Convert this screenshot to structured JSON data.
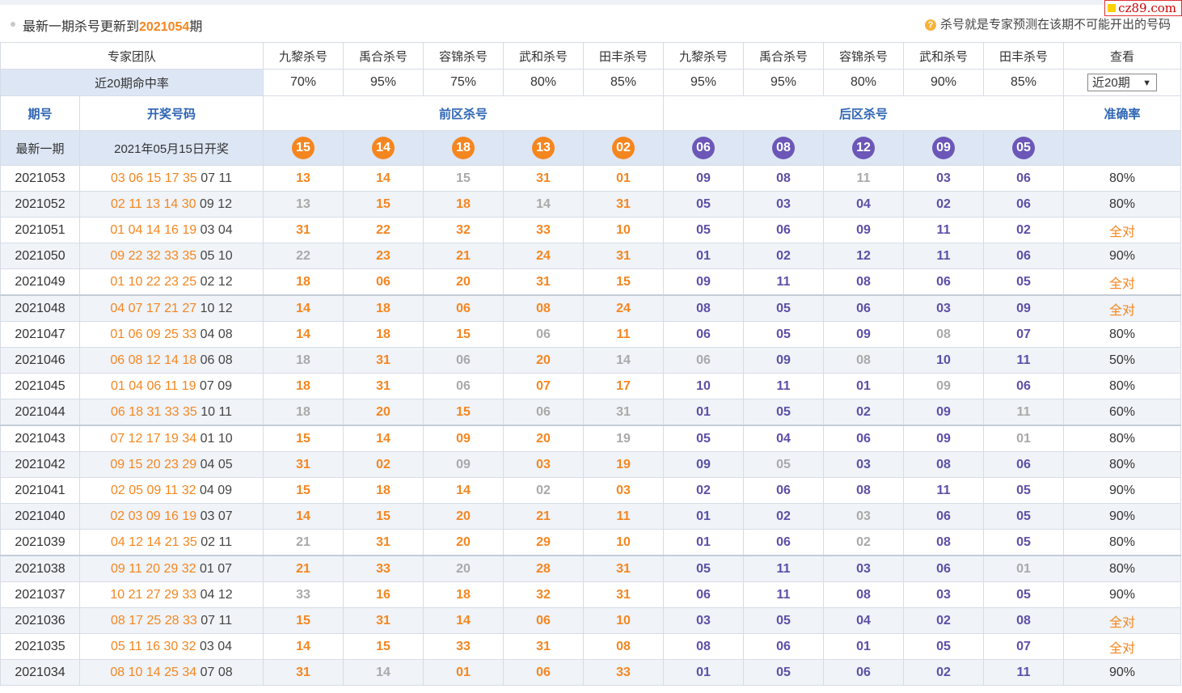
{
  "header": {
    "prefix": "最新一期杀号更新到",
    "period": "2021054",
    "suffix": "期",
    "tip": "杀号就是专家预测在该期不可能开出的号码",
    "logo": "cz89.com"
  },
  "columns": {
    "team_label": "专家团队",
    "experts": [
      "九黎杀号",
      "禹合杀号",
      "容锦杀号",
      "武和杀号",
      "田丰杀号",
      "九黎杀号",
      "禹合杀号",
      "容锦杀号",
      "武和杀号",
      "田丰杀号"
    ],
    "view_label": "查看"
  },
  "rates": {
    "label": "近20期命中率",
    "values": [
      "70%",
      "95%",
      "75%",
      "80%",
      "85%",
      "95%",
      "95%",
      "80%",
      "90%",
      "85%"
    ],
    "select_value": "近20期"
  },
  "sections": {
    "period": "期号",
    "draw": "开奖号码",
    "front": "前区杀号",
    "back": "后区杀号",
    "accuracy": "准确率"
  },
  "latest": {
    "label": "最新一期",
    "date": "2021年05月15日开奖",
    "front": [
      "15",
      "14",
      "18",
      "13",
      "02"
    ],
    "back": [
      "06",
      "08",
      "12",
      "09",
      "05"
    ]
  },
  "rows": [
    {
      "period": "2021053",
      "front": [
        "03",
        "06",
        "15",
        "17",
        "35"
      ],
      "back": [
        "07",
        "11"
      ],
      "kills": [
        "13",
        "14",
        "15",
        "31",
        "01",
        "09",
        "08",
        "11",
        "03",
        "06"
      ],
      "hits": [
        1,
        1,
        0,
        1,
        1,
        1,
        1,
        0,
        1,
        1
      ],
      "acc": "80%"
    },
    {
      "period": "2021052",
      "front": [
        "02",
        "11",
        "13",
        "14",
        "30"
      ],
      "back": [
        "09",
        "12"
      ],
      "kills": [
        "13",
        "15",
        "18",
        "14",
        "31",
        "05",
        "03",
        "04",
        "02",
        "06"
      ],
      "hits": [
        0,
        1,
        1,
        0,
        1,
        1,
        1,
        1,
        1,
        1
      ],
      "acc": "80%"
    },
    {
      "period": "2021051",
      "front": [
        "01",
        "04",
        "14",
        "16",
        "19"
      ],
      "back": [
        "03",
        "04"
      ],
      "kills": [
        "31",
        "22",
        "32",
        "33",
        "10",
        "05",
        "06",
        "09",
        "11",
        "02"
      ],
      "hits": [
        1,
        1,
        1,
        1,
        1,
        1,
        1,
        1,
        1,
        1
      ],
      "acc": "全对"
    },
    {
      "period": "2021050",
      "front": [
        "09",
        "22",
        "32",
        "33",
        "35"
      ],
      "back": [
        "05",
        "10"
      ],
      "kills": [
        "22",
        "23",
        "21",
        "24",
        "31",
        "01",
        "02",
        "12",
        "11",
        "06"
      ],
      "hits": [
        0,
        1,
        1,
        1,
        1,
        1,
        1,
        1,
        1,
        1
      ],
      "acc": "90%"
    },
    {
      "period": "2021049",
      "front": [
        "01",
        "10",
        "22",
        "23",
        "25"
      ],
      "back": [
        "02",
        "12"
      ],
      "kills": [
        "18",
        "06",
        "20",
        "31",
        "15",
        "09",
        "11",
        "08",
        "06",
        "05"
      ],
      "hits": [
        1,
        1,
        1,
        1,
        1,
        1,
        1,
        1,
        1,
        1
      ],
      "acc": "全对"
    },
    {
      "period": "2021048",
      "front": [
        "04",
        "07",
        "17",
        "21",
        "27"
      ],
      "back": [
        "10",
        "12"
      ],
      "kills": [
        "14",
        "18",
        "06",
        "08",
        "24",
        "08",
        "05",
        "06",
        "03",
        "09"
      ],
      "hits": [
        1,
        1,
        1,
        1,
        1,
        1,
        1,
        1,
        1,
        1
      ],
      "acc": "全对"
    },
    {
      "period": "2021047",
      "front": [
        "01",
        "06",
        "09",
        "25",
        "33"
      ],
      "back": [
        "04",
        "08"
      ],
      "kills": [
        "14",
        "18",
        "15",
        "06",
        "11",
        "06",
        "05",
        "09",
        "08",
        "07"
      ],
      "hits": [
        1,
        1,
        1,
        0,
        1,
        1,
        1,
        1,
        0,
        1
      ],
      "acc": "80%"
    },
    {
      "period": "2021046",
      "front": [
        "06",
        "08",
        "12",
        "14",
        "18"
      ],
      "back": [
        "06",
        "08"
      ],
      "kills": [
        "18",
        "31",
        "06",
        "20",
        "14",
        "06",
        "09",
        "08",
        "10",
        "11"
      ],
      "hits": [
        0,
        1,
        0,
        1,
        0,
        0,
        1,
        0,
        1,
        1
      ],
      "acc": "50%"
    },
    {
      "period": "2021045",
      "front": [
        "01",
        "04",
        "06",
        "11",
        "19"
      ],
      "back": [
        "07",
        "09"
      ],
      "kills": [
        "18",
        "31",
        "06",
        "07",
        "17",
        "10",
        "11",
        "01",
        "09",
        "06"
      ],
      "hits": [
        1,
        1,
        0,
        1,
        1,
        1,
        1,
        1,
        0,
        1
      ],
      "acc": "80%"
    },
    {
      "period": "2021044",
      "front": [
        "06",
        "18",
        "31",
        "33",
        "35"
      ],
      "back": [
        "10",
        "11"
      ],
      "kills": [
        "18",
        "20",
        "15",
        "06",
        "31",
        "01",
        "05",
        "02",
        "09",
        "11"
      ],
      "hits": [
        0,
        1,
        1,
        0,
        0,
        1,
        1,
        1,
        1,
        0
      ],
      "acc": "60%"
    },
    {
      "period": "2021043",
      "front": [
        "07",
        "12",
        "17",
        "19",
        "34"
      ],
      "back": [
        "01",
        "10"
      ],
      "kills": [
        "15",
        "14",
        "09",
        "20",
        "19",
        "05",
        "04",
        "06",
        "09",
        "01"
      ],
      "hits": [
        1,
        1,
        1,
        1,
        0,
        1,
        1,
        1,
        1,
        0
      ],
      "acc": "80%"
    },
    {
      "period": "2021042",
      "front": [
        "09",
        "15",
        "20",
        "23",
        "29"
      ],
      "back": [
        "04",
        "05"
      ],
      "kills": [
        "31",
        "02",
        "09",
        "03",
        "19",
        "09",
        "05",
        "03",
        "08",
        "06"
      ],
      "hits": [
        1,
        1,
        0,
        1,
        1,
        1,
        0,
        1,
        1,
        1
      ],
      "acc": "80%"
    },
    {
      "period": "2021041",
      "front": [
        "02",
        "05",
        "09",
        "11",
        "32"
      ],
      "back": [
        "04",
        "09"
      ],
      "kills": [
        "15",
        "18",
        "14",
        "02",
        "03",
        "02",
        "06",
        "08",
        "11",
        "05"
      ],
      "hits": [
        1,
        1,
        1,
        0,
        1,
        1,
        1,
        1,
        1,
        1
      ],
      "acc": "90%"
    },
    {
      "period": "2021040",
      "front": [
        "02",
        "03",
        "09",
        "16",
        "19"
      ],
      "back": [
        "03",
        "07"
      ],
      "kills": [
        "14",
        "15",
        "20",
        "21",
        "11",
        "01",
        "02",
        "03",
        "06",
        "05"
      ],
      "hits": [
        1,
        1,
        1,
        1,
        1,
        1,
        1,
        0,
        1,
        1
      ],
      "acc": "90%"
    },
    {
      "period": "2021039",
      "front": [
        "04",
        "12",
        "14",
        "21",
        "35"
      ],
      "back": [
        "02",
        "11"
      ],
      "kills": [
        "21",
        "31",
        "20",
        "29",
        "10",
        "01",
        "06",
        "02",
        "08",
        "05"
      ],
      "hits": [
        0,
        1,
        1,
        1,
        1,
        1,
        1,
        0,
        1,
        1
      ],
      "acc": "80%"
    },
    {
      "period": "2021038",
      "front": [
        "09",
        "11",
        "20",
        "29",
        "32"
      ],
      "back": [
        "01",
        "07"
      ],
      "kills": [
        "21",
        "33",
        "20",
        "28",
        "31",
        "05",
        "11",
        "03",
        "06",
        "01"
      ],
      "hits": [
        1,
        1,
        0,
        1,
        1,
        1,
        1,
        1,
        1,
        0
      ],
      "acc": "80%"
    },
    {
      "period": "2021037",
      "front": [
        "10",
        "21",
        "27",
        "29",
        "33"
      ],
      "back": [
        "04",
        "12"
      ],
      "kills": [
        "33",
        "16",
        "18",
        "32",
        "31",
        "06",
        "11",
        "08",
        "03",
        "05"
      ],
      "hits": [
        0,
        1,
        1,
        1,
        1,
        1,
        1,
        1,
        1,
        1
      ],
      "acc": "90%"
    },
    {
      "period": "2021036",
      "front": [
        "08",
        "17",
        "25",
        "28",
        "33"
      ],
      "back": [
        "07",
        "11"
      ],
      "kills": [
        "15",
        "31",
        "14",
        "06",
        "10",
        "03",
        "05",
        "04",
        "02",
        "08"
      ],
      "hits": [
        1,
        1,
        1,
        1,
        1,
        1,
        1,
        1,
        1,
        1
      ],
      "acc": "全对"
    },
    {
      "period": "2021035",
      "front": [
        "05",
        "11",
        "16",
        "30",
        "32"
      ],
      "back": [
        "03",
        "04"
      ],
      "kills": [
        "14",
        "15",
        "33",
        "31",
        "08",
        "08",
        "06",
        "01",
        "05",
        "07"
      ],
      "hits": [
        1,
        1,
        1,
        1,
        1,
        1,
        1,
        1,
        1,
        1
      ],
      "acc": "全对"
    },
    {
      "period": "2021034",
      "front": [
        "08",
        "10",
        "14",
        "25",
        "34"
      ],
      "back": [
        "07",
        "08"
      ],
      "kills": [
        "31",
        "14",
        "01",
        "06",
        "33",
        "01",
        "05",
        "06",
        "02",
        "11"
      ],
      "hits": [
        1,
        0,
        1,
        1,
        1,
        1,
        1,
        1,
        1,
        1
      ],
      "acc": "90%"
    }
  ],
  "colors": {
    "front": "#f5861f",
    "back": "#6b57b8",
    "miss": "#a9a9a9",
    "section": "#2d64b3"
  }
}
